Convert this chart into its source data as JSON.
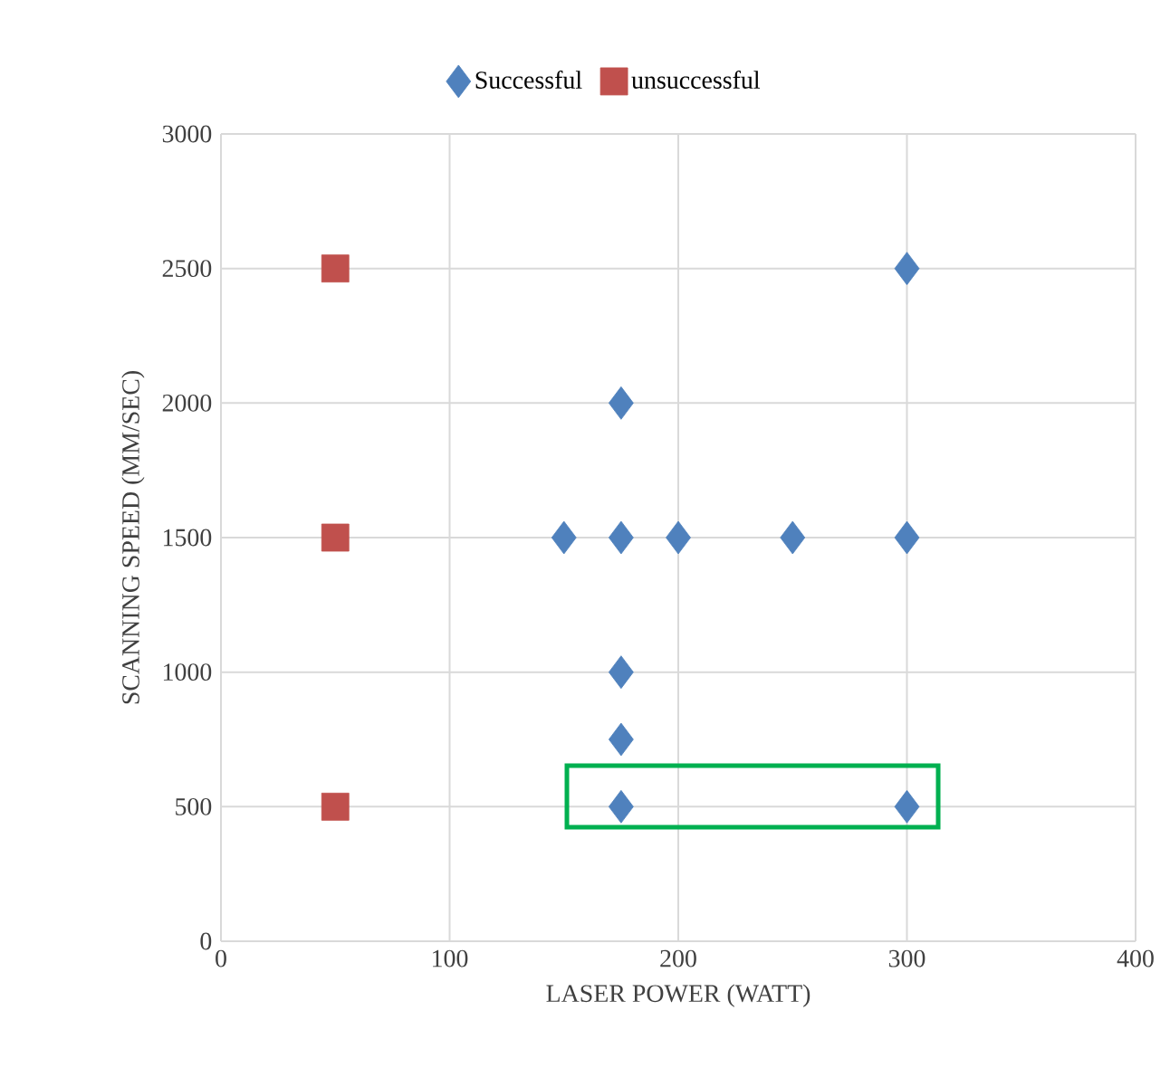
{
  "chart_data": {
    "type": "scatter",
    "xlabel": "LASER POWER (WATT)",
    "ylabel": "SCANNING SPEED (MM/SEC)",
    "xlim": [
      0,
      400
    ],
    "xticks": [
      0,
      100,
      200,
      300,
      400
    ],
    "ylim": [
      0,
      3000
    ],
    "yticks": [
      0,
      500,
      1000,
      1500,
      2000,
      2500,
      3000
    ],
    "grid": true,
    "legend": "top",
    "series": [
      {
        "name": "Successful",
        "color": "#4f81bd",
        "marker": "diamond",
        "x": [
          150,
          175,
          175,
          175,
          175,
          175,
          200,
          250,
          300,
          300,
          300
        ],
        "values": [
          1500,
          1500,
          2000,
          1000,
          750,
          500,
          1500,
          1500,
          1500,
          2500,
          500
        ]
      },
      {
        "name": "unsuccessful",
        "color": "#c0504d",
        "marker": "square",
        "x": [
          50,
          50,
          50
        ],
        "values": [
          2500,
          1500,
          500
        ]
      }
    ]
  }
}
